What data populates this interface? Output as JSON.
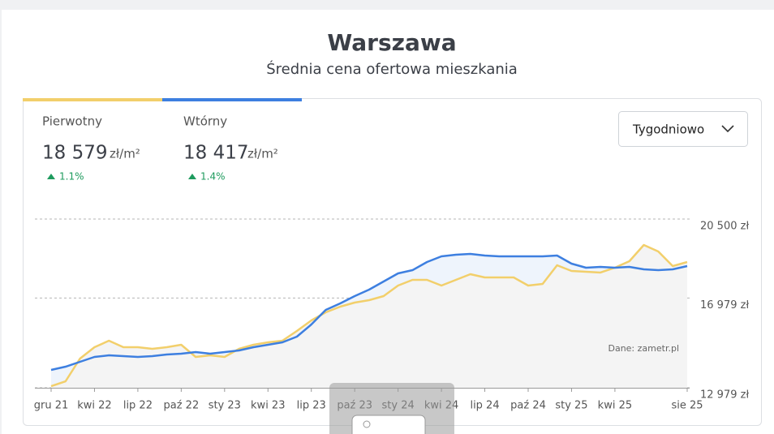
{
  "chart_data": {
    "type": "line",
    "title": "Warszawa",
    "subtitle": "Średnia cena ofertowa mieszkania",
    "period": "Tygodniowo",
    "annotation": "Dane: zametr.pl",
    "categories": [
      "gru 21",
      null,
      null,
      "kwi 22",
      null,
      null,
      "lip 22",
      null,
      null,
      "paź 22",
      null,
      null,
      "sty 23",
      null,
      null,
      "kwi 23",
      null,
      null,
      "lip 23",
      null,
      null,
      "paź 23",
      null,
      null,
      "sty 24",
      null,
      null,
      "kwi 24",
      null,
      null,
      "lip 24",
      null,
      null,
      "paź 24",
      null,
      null,
      "sty 25",
      null,
      null,
      "kwi 25",
      null,
      null,
      null,
      null,
      "sie 25"
    ],
    "ylim": [
      12979,
      20500
    ],
    "yticks": [
      {
        "value": 20500,
        "label": "20 500 zł"
      },
      {
        "value": 16979,
        "label": "16 979 zł"
      },
      {
        "value": 12979,
        "label": "12 979 zł"
      }
    ],
    "grid": true,
    "series": [
      {
        "name": "Pierwotny",
        "color": "#f2cf6b",
        "current": "18 579",
        "unit": "zł/m²",
        "change": "1.1%",
        "values": [
          13051,
          13268,
          14281,
          14787,
          15076,
          14787,
          14787,
          14715,
          14787,
          14895,
          14353,
          14425,
          14353,
          14715,
          14895,
          15004,
          15076,
          15510,
          15980,
          16342,
          16595,
          16776,
          16884,
          17065,
          17535,
          17788,
          17788,
          17535,
          17788,
          18041,
          17897,
          17897,
          17897,
          17535,
          17607,
          18439,
          18186,
          18150,
          18114,
          18331,
          18620,
          19343,
          19054,
          18403,
          18584
        ]
      },
      {
        "name": "Wtórny",
        "color": "#3d7fe0",
        "current": "18 417",
        "unit": "zł/m²",
        "change": "1.4%",
        "values": [
          13775,
          13919,
          14136,
          14353,
          14425,
          14389,
          14353,
          14389,
          14461,
          14498,
          14570,
          14498,
          14570,
          14642,
          14787,
          14895,
          15004,
          15257,
          15799,
          16450,
          16740,
          17065,
          17354,
          17716,
          18078,
          18222,
          18584,
          18837,
          18909,
          18945,
          18873,
          18837,
          18837,
          18837,
          18837,
          18873,
          18511,
          18331,
          18367,
          18331,
          18367,
          18258,
          18222,
          18258,
          18403
        ]
      }
    ]
  }
}
